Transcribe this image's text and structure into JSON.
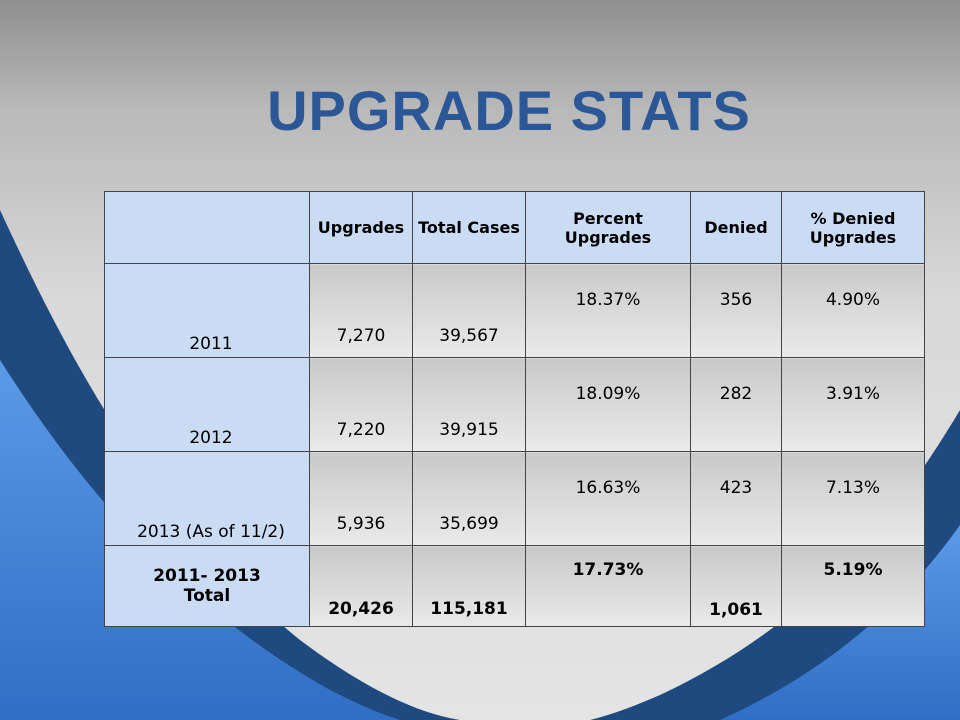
{
  "slide": {
    "title": "UPGRADE STATS",
    "colors": {
      "title": "#2b5796",
      "header_cell": "#c9dcf3",
      "wave_dark": "#1f4a80",
      "wave_light": "#4a8ad8"
    }
  },
  "table": {
    "headers": [
      "",
      "Upgrades",
      "Total Cases",
      "Percent Upgrades",
      "Denied",
      "% Denied Upgrades"
    ],
    "rows": [
      {
        "year": "2011",
        "upgrades": "7,270",
        "total_cases": "39,567",
        "percent_upgrades": "18.37%",
        "denied": "356",
        "pct_denied": "4.90%"
      },
      {
        "year": "2012",
        "upgrades": "7,220",
        "total_cases": "39,915",
        "percent_upgrades": "18.09%",
        "denied": "282",
        "pct_denied": "3.91%"
      },
      {
        "year": "2013 (As of 11/2)",
        "upgrades": "5,936",
        "total_cases": "35,699",
        "percent_upgrades": "16.63%",
        "denied": "423",
        "pct_denied": "7.13%"
      }
    ],
    "total": {
      "year_line1": "2011- 2013",
      "year_line2": "Total",
      "upgrades": "20,426",
      "total_cases": "115,181",
      "percent_upgrades": "17.73%",
      "denied": "1,061",
      "pct_denied": "5.19%"
    }
  }
}
